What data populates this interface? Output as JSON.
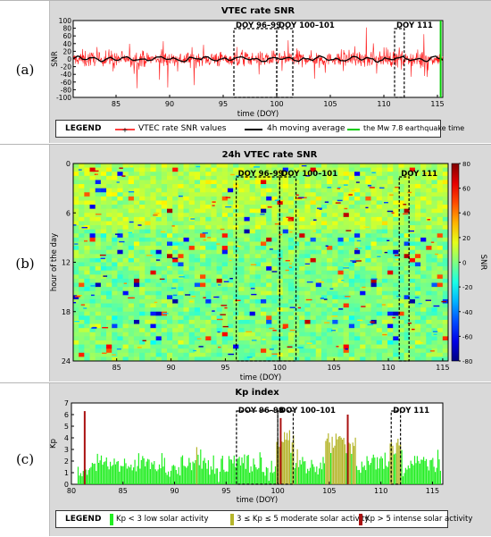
{
  "panels": [
    {
      "label": "(a)"
    },
    {
      "label": "(b)"
    },
    {
      "label": "(c)"
    }
  ],
  "regions": [
    {
      "label": "DOY 96–99",
      "x0": 96,
      "x1": 100
    },
    {
      "label": "DOY 100–101",
      "x0": 100,
      "x1": 101.5
    },
    {
      "label": "DOY 111",
      "x0": 111,
      "x1": 111.9
    }
  ],
  "legend_a": {
    "title": "LEGEND",
    "items": [
      "VTEC rate SNR values",
      "4h moving average",
      "the Mw 7.8 earthquake time"
    ],
    "colors": [
      "#ff0000",
      "#000000",
      "#00cc00"
    ]
  },
  "legend_c": {
    "title": "LEGEND",
    "items": [
      "Kp < 3 low solar activity",
      "3 ≤ Kp ≤ 5 moderate solar activity",
      "Kp > 5 intense solar activity"
    ],
    "colors": [
      "#22ee22",
      "#b5b52a",
      "#aa1111"
    ]
  },
  "chart_data": [
    {
      "type": "line",
      "title": "VTEC rate SNR",
      "xlabel": "time (DOY)",
      "ylabel": "SNR",
      "xlim": [
        81,
        115.5
      ],
      "ylim": [
        -100,
        100
      ],
      "xticks": [
        85,
        90,
        95,
        100,
        105,
        110,
        115
      ],
      "yticks": [
        100,
        80,
        60,
        40,
        20,
        0,
        -20,
        -40,
        -60,
        -80,
        -100
      ],
      "series": [
        {
          "name": "VTEC rate SNR values",
          "x": [
            81,
            83,
            85,
            87,
            89,
            91,
            93,
            95,
            97,
            99,
            101,
            103,
            105,
            107,
            109,
            111,
            113,
            115
          ],
          "y": [
            5,
            -18,
            22,
            -25,
            12,
            -20,
            15,
            -22,
            28,
            -30,
            20,
            -25,
            32,
            -28,
            18,
            -22,
            25,
            -15
          ]
        },
        {
          "name": "4h moving average",
          "x": [
            81,
            83,
            85,
            87,
            89,
            91,
            93,
            95,
            97,
            99,
            101,
            103,
            105,
            107,
            109,
            111,
            113,
            115
          ],
          "y": [
            2,
            -1,
            3,
            -2,
            1,
            -1,
            2,
            -2,
            4,
            -3,
            2,
            -2,
            5,
            -3,
            1,
            -2,
            2,
            0
          ]
        }
      ],
      "earthquake_doy": 115.3
    },
    {
      "type": "heatmap",
      "title": "24h VTEC rate SNR",
      "xlabel": "time (DOY)",
      "ylabel": "hour of the day",
      "colorbar_label": "SNR",
      "xlim": [
        81,
        115.5
      ],
      "ylim": [
        0,
        24
      ],
      "clim": [
        -80,
        80
      ],
      "xticks": [
        85,
        90,
        95,
        100,
        105,
        110,
        115
      ],
      "yticks": [
        0,
        6,
        12,
        18,
        24
      ],
      "cticks": [
        80,
        60,
        40,
        20,
        0,
        -20,
        -40,
        -60,
        -80
      ]
    },
    {
      "type": "bar",
      "title": "Kp index",
      "xlabel": "time (DOY)",
      "ylabel": "Kp",
      "xlim": [
        80,
        116
      ],
      "ylim": [
        0,
        7
      ],
      "xticks": [
        80,
        85,
        90,
        95,
        100,
        105,
        110,
        115
      ],
      "yticks": [
        0,
        1,
        2,
        3,
        4,
        5,
        6,
        7
      ],
      "spikes": [
        {
          "x": 81.2,
          "value": 6.3
        },
        {
          "x": 100.2,
          "value": 5.7
        },
        {
          "x": 106.7,
          "value": 6.0
        }
      ]
    }
  ]
}
